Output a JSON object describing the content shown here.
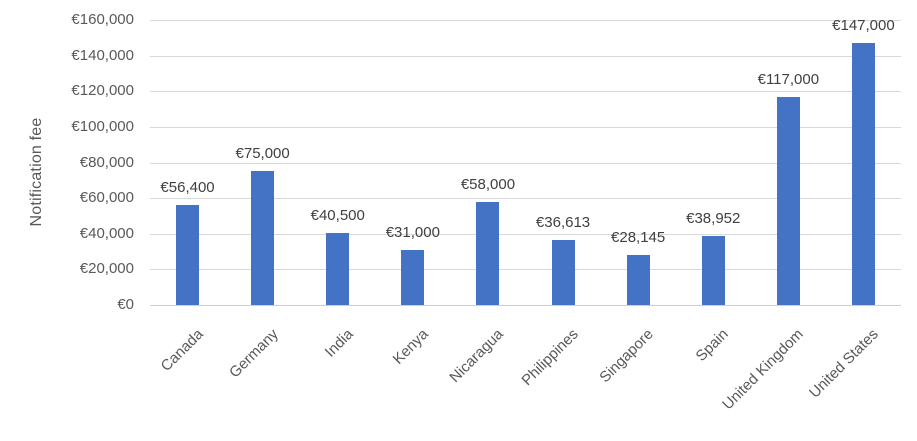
{
  "chart_data": {
    "type": "bar",
    "title": "",
    "xlabel": "",
    "ylabel": "Notification fee",
    "categories": [
      "Canada",
      "Germany",
      "India",
      "Kenya",
      "Nicaragua",
      "Philippines",
      "Singapore",
      "Spain",
      "United Kingdom",
      "United States"
    ],
    "values": [
      56400,
      75000,
      40500,
      31000,
      58000,
      36613,
      28145,
      38952,
      117000,
      147000
    ],
    "data_labels": [
      "€56,400",
      "€75,000",
      "€40,500",
      "€31,000",
      "€58,000",
      "€36,613",
      "€28,145",
      "€38,952",
      "€117,000",
      "€147,000"
    ],
    "ylim": [
      0,
      160000
    ],
    "ytick_interval": 20000,
    "ytick_labels": [
      "€0",
      "€20,000",
      "€40,000",
      "€60,000",
      "€80,000",
      "€100,000",
      "€120,000",
      "€140,000",
      "€160,000"
    ],
    "grid": true,
    "legend": "none",
    "bar_color": "#4472C4",
    "gridline_color": "#D9D9D9",
    "axis_line_color": "#D0CECE",
    "axis_text_color": "#595959",
    "data_label_color": "#404040"
  }
}
